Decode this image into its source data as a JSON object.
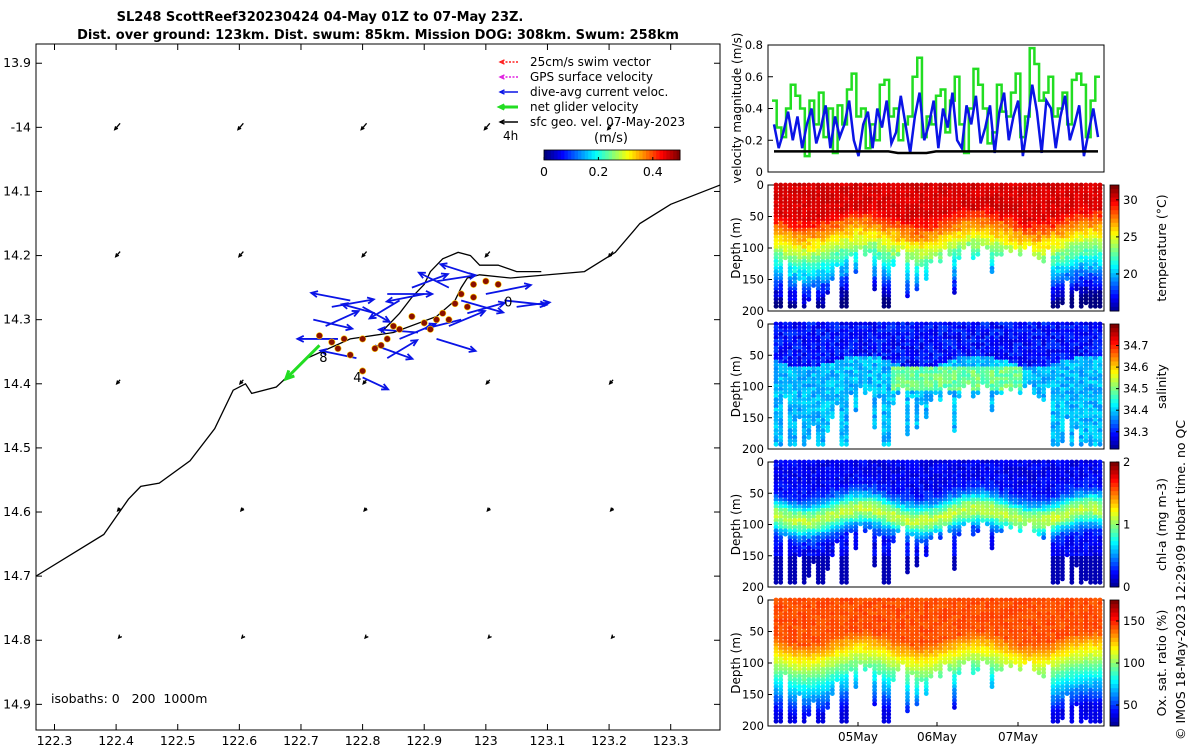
{
  "title": {
    "line1": "SL248 ScottReef320230424 04-May 01Z to 07-May 23Z.",
    "line2": "Dist. over ground: 123km. Dist. swum: 85km. Mission DOG: 308km. Swum: 258km"
  },
  "credit": "© IMOS 18-May-2023 12:29:09 Hobart time. no QC",
  "colors": {
    "swim": "#ff2020",
    "gps": "#e020e0",
    "current": "#0a14e6",
    "net": "#22dd22",
    "sfc": "#000000",
    "coast": "#000000"
  },
  "chart_data": [
    {
      "type": "map",
      "title": "SL248 ScottReef320230424 track map",
      "xlim": [
        122.27,
        123.38
      ],
      "ylim": [
        -14.94,
        -13.87
      ],
      "xticks": [
        122.3,
        122.4,
        122.5,
        122.6,
        122.7,
        122.8,
        122.9,
        123.0,
        123.1,
        123.2,
        123.3
      ],
      "xtick_labels": [
        "122.3",
        "122.4",
        "122.5",
        "122.6",
        "122.7",
        "122.8",
        "122.9",
        "123",
        "123.1",
        "123.2",
        "123.3"
      ],
      "yticks": [
        -13.9,
        -14.0,
        -14.1,
        -14.2,
        -14.3,
        -14.4,
        -14.5,
        -14.6,
        -14.7,
        -14.8,
        -14.9
      ],
      "ytick_labels": [
        "13.9",
        "-14",
        "14.1",
        "14.2",
        "14.3",
        "14.4",
        "14.5",
        "14.6",
        "14.7",
        "14.8",
        "14.9"
      ],
      "legend": [
        {
          "label": "25cm/s swim vector",
          "color": "#ff2020",
          "dashed": true
        },
        {
          "label": "GPS surface velocity",
          "color": "#e020e0",
          "dashed": true
        },
        {
          "label": "dive-avg current veloc.",
          "color": "#0a14e6",
          "dashed": false
        },
        {
          "label": "net glider velocity",
          "color": "#22dd22",
          "dashed": false
        },
        {
          "label": "sfc geo. vel. 07-May-2023",
          "color": "#000000",
          "dashed": false
        }
      ],
      "legend_note": "4h",
      "colorbar": {
        "label": "(m/s)",
        "ticks": [
          "0",
          "0.2",
          "0.4"
        ],
        "range": [
          0,
          0.5
        ]
      },
      "isobaths_label": "isobaths: 0   200  1000m",
      "track_labels": [
        "8",
        "4",
        "0"
      ],
      "coastline": [
        [
          122.27,
          -14.7
        ],
        [
          122.38,
          -14.635
        ],
        [
          122.42,
          -14.58
        ],
        [
          122.44,
          -14.56
        ],
        [
          122.47,
          -14.555
        ],
        [
          122.52,
          -14.52
        ],
        [
          122.56,
          -14.47
        ],
        [
          122.59,
          -14.41
        ],
        [
          122.61,
          -14.4
        ],
        [
          122.62,
          -14.415
        ],
        [
          122.66,
          -14.405
        ],
        [
          122.71,
          -14.36
        ],
        [
          122.78,
          -14.33
        ],
        [
          122.85,
          -14.32
        ],
        [
          122.92,
          -14.295
        ],
        [
          122.95,
          -14.27
        ],
        [
          122.96,
          -14.25
        ],
        [
          122.97,
          -14.235
        ],
        [
          122.99,
          -14.23
        ],
        [
          123.04,
          -14.235
        ],
        [
          123.16,
          -14.225
        ],
        [
          123.21,
          -14.195
        ],
        [
          123.25,
          -14.15
        ],
        [
          123.3,
          -14.12
        ],
        [
          123.38,
          -14.09
        ]
      ],
      "coastline_island": [
        [
          122.83,
          -14.32
        ],
        [
          122.86,
          -14.29
        ],
        [
          122.88,
          -14.265
        ],
        [
          122.9,
          -14.245
        ],
        [
          122.91,
          -14.225
        ],
        [
          122.93,
          -14.205
        ],
        [
          122.955,
          -14.195
        ],
        [
          122.975,
          -14.2
        ],
        [
          122.99,
          -14.215
        ],
        [
          123.02,
          -14.215
        ],
        [
          123.05,
          -14.225
        ],
        [
          123.09,
          -14.225
        ]
      ],
      "track_points": [
        [
          122.8,
          -14.38
        ],
        [
          122.78,
          -14.355
        ],
        [
          122.76,
          -14.345
        ],
        [
          122.73,
          -14.325
        ],
        [
          122.75,
          -14.335
        ],
        [
          122.77,
          -14.33
        ],
        [
          122.8,
          -14.33
        ],
        [
          122.82,
          -14.345
        ],
        [
          122.83,
          -14.34
        ],
        [
          122.84,
          -14.33
        ],
        [
          122.85,
          -14.31
        ],
        [
          122.88,
          -14.295
        ],
        [
          122.9,
          -14.305
        ],
        [
          122.92,
          -14.3
        ],
        [
          122.93,
          -14.29
        ],
        [
          122.95,
          -14.275
        ],
        [
          122.97,
          -14.28
        ],
        [
          122.98,
          -14.265
        ],
        [
          122.96,
          -14.26
        ],
        [
          122.98,
          -14.245
        ],
        [
          123.0,
          -14.24
        ],
        [
          123.02,
          -14.245
        ],
        [
          122.94,
          -14.3
        ],
        [
          122.91,
          -14.315
        ],
        [
          122.86,
          -14.315
        ]
      ],
      "current_vectors": [
        [
          122.72,
          -14.3,
          0.26,
          -0.06
        ],
        [
          122.74,
          -14.31,
          0.22,
          0.1
        ],
        [
          122.75,
          -14.28,
          0.28,
          0.05
        ],
        [
          122.78,
          -14.27,
          -0.26,
          0.05
        ],
        [
          122.8,
          -14.28,
          0.18,
          -0.1
        ],
        [
          122.82,
          -14.29,
          -0.22,
          0.06
        ],
        [
          122.84,
          -14.26,
          0.3,
          0.0
        ],
        [
          122.86,
          -14.27,
          -0.2,
          -0.12
        ],
        [
          122.88,
          -14.25,
          0.24,
          0.09
        ],
        [
          122.9,
          -14.26,
          -0.25,
          -0.05
        ],
        [
          122.92,
          -14.24,
          0.26,
          0.04
        ],
        [
          122.94,
          -14.25,
          -0.2,
          0.1
        ],
        [
          122.96,
          -14.27,
          0.28,
          -0.08
        ],
        [
          122.98,
          -14.23,
          -0.22,
          0.07
        ],
        [
          123.0,
          -14.26,
          0.3,
          0.06
        ],
        [
          123.03,
          -14.27,
          0.28,
          -0.03
        ],
        [
          123.05,
          -14.28,
          0.22,
          0.03
        ],
        [
          122.82,
          -14.34,
          0.25,
          -0.09
        ],
        [
          122.79,
          -14.36,
          -0.24,
          0.05
        ],
        [
          122.84,
          -14.36,
          0.2,
          0.12
        ],
        [
          122.76,
          -14.33,
          -0.27,
          0.0
        ],
        [
          122.86,
          -14.33,
          0.24,
          0.1
        ],
        [
          122.89,
          -14.32,
          -0.26,
          0.02
        ],
        [
          122.92,
          -14.33,
          0.26,
          -0.08
        ],
        [
          122.94,
          -14.31,
          0.24,
          0.1
        ],
        [
          122.96,
          -14.3,
          -0.24,
          -0.06
        ],
        [
          122.97,
          -14.29,
          0.25,
          0.07
        ],
        [
          122.8,
          -14.39,
          0.17,
          -0.08
        ]
      ],
      "net_vector": [
        122.73,
        -14.34,
        -0.12,
        -0.12
      ],
      "geo_vel_grid_x": [
        122.4,
        122.6,
        122.8,
        123.0,
        123.2
      ],
      "geo_vel_grid_y": [
        -14.0,
        -14.2,
        -14.4,
        -14.6,
        -14.8
      ],
      "geo_vel_vector": [
        -0.06,
        -0.07
      ]
    },
    {
      "type": "line",
      "ylabel": "velocity magnitude (m/s)",
      "ylim": [
        0,
        0.8
      ],
      "yticks": [
        "0",
        "0.2",
        "0.4",
        "0.6",
        "0.8"
      ],
      "x_range_days": [
        4.04,
        7.96
      ],
      "series": [
        {
          "name": "net glider velocity",
          "color": "#22dd22",
          "values": [
            0.45,
            0.28,
            0.22,
            0.4,
            0.55,
            0.48,
            0.4,
            0.1,
            0.45,
            0.3,
            0.5,
            0.22,
            0.4,
            0.12,
            0.42,
            0.3,
            0.52,
            0.62,
            0.35,
            0.4,
            0.15,
            0.3,
            0.2,
            0.55,
            0.58,
            0.35,
            0.4,
            0.2,
            0.3,
            0.35,
            0.6,
            0.72,
            0.22,
            0.35,
            0.3,
            0.48,
            0.52,
            0.25,
            0.45,
            0.6,
            0.3,
            0.12,
            0.4,
            0.65,
            0.55,
            0.4,
            0.18,
            0.25,
            0.55,
            0.38,
            0.35,
            0.5,
            0.62,
            0.22,
            0.35,
            0.78,
            0.68,
            0.45,
            0.5,
            0.6,
            0.35,
            0.4,
            0.5,
            0.3,
            0.58,
            0.62,
            0.55,
            0.22,
            0.45,
            0.6
          ]
        },
        {
          "name": "dive-avg current",
          "color": "#0a14e6",
          "values": [
            0.3,
            0.15,
            0.25,
            0.38,
            0.2,
            0.35,
            0.15,
            0.3,
            0.4,
            0.18,
            0.28,
            0.42,
            0.15,
            0.35,
            0.22,
            0.3,
            0.45,
            0.2,
            0.1,
            0.3,
            0.38,
            0.15,
            0.4,
            0.28,
            0.45,
            0.18,
            0.25,
            0.48,
            0.3,
            0.12,
            0.35,
            0.5,
            0.2,
            0.3,
            0.45,
            0.15,
            0.4,
            0.28,
            0.5,
            0.2,
            0.15,
            0.42,
            0.3,
            0.48,
            0.18,
            0.28,
            0.42,
            0.12,
            0.38,
            0.5,
            0.2,
            0.35,
            0.45,
            0.1,
            0.3,
            0.55,
            0.38,
            0.12,
            0.45,
            0.4,
            0.15,
            0.35,
            0.48,
            0.2,
            0.3,
            0.42,
            0.1,
            0.25,
            0.4,
            0.22
          ]
        },
        {
          "name": "sfc geo. vel.",
          "color": "#000000",
          "values": [
            0.13,
            0.13,
            0.13,
            0.13,
            0.13,
            0.13,
            0.13,
            0.13,
            0.13,
            0.13,
            0.13,
            0.13,
            0.13,
            0.12,
            0.12,
            0.12,
            0.12,
            0.13,
            0.13,
            0.13,
            0.13,
            0.13,
            0.13,
            0.13,
            0.13,
            0.13,
            0.13,
            0.13,
            0.13,
            0.13,
            0.13,
            0.13,
            0.13,
            0.13,
            0.13
          ]
        }
      ]
    },
    {
      "type": "scatter",
      "ylabel": "Depth (m)",
      "cblabel": "temperature (°C)",
      "clim": [
        15,
        32
      ],
      "cticks": [
        "20",
        "25",
        "30"
      ],
      "ylim": [
        0,
        200
      ],
      "yticks": [
        "0",
        "50",
        "100",
        "150",
        "200"
      ],
      "colormap": "jet"
    },
    {
      "type": "scatter",
      "ylabel": "Depth (m)",
      "cblabel": "salinity",
      "clim": [
        34.22,
        34.8
      ],
      "cticks": [
        "34.3",
        "34.4",
        "34.5",
        "34.6",
        "34.7"
      ],
      "ylim": [
        0,
        200
      ],
      "yticks": [
        "0",
        "50",
        "100",
        "150",
        "200"
      ],
      "colormap": "jet"
    },
    {
      "type": "scatter",
      "ylabel": "Depth (m)",
      "cblabel": "chl-a (mg m-3)",
      "clim": [
        0,
        2
      ],
      "cticks": [
        "0",
        "1",
        "2"
      ],
      "ylim": [
        0,
        200
      ],
      "yticks": [
        "0",
        "50",
        "100",
        "150",
        "200"
      ],
      "colormap": "jet"
    },
    {
      "type": "scatter",
      "ylabel": "Depth (m)",
      "cblabel": "Ox. sat. ratio (%)",
      "clim": [
        25,
        175
      ],
      "cticks": [
        "50",
        "100",
        "150"
      ],
      "ylim": [
        0,
        200
      ],
      "yticks": [
        "0",
        "50",
        "100",
        "150",
        "200"
      ],
      "xticks": [
        "05May",
        "06May",
        "07May"
      ],
      "colormap": "jet"
    }
  ]
}
